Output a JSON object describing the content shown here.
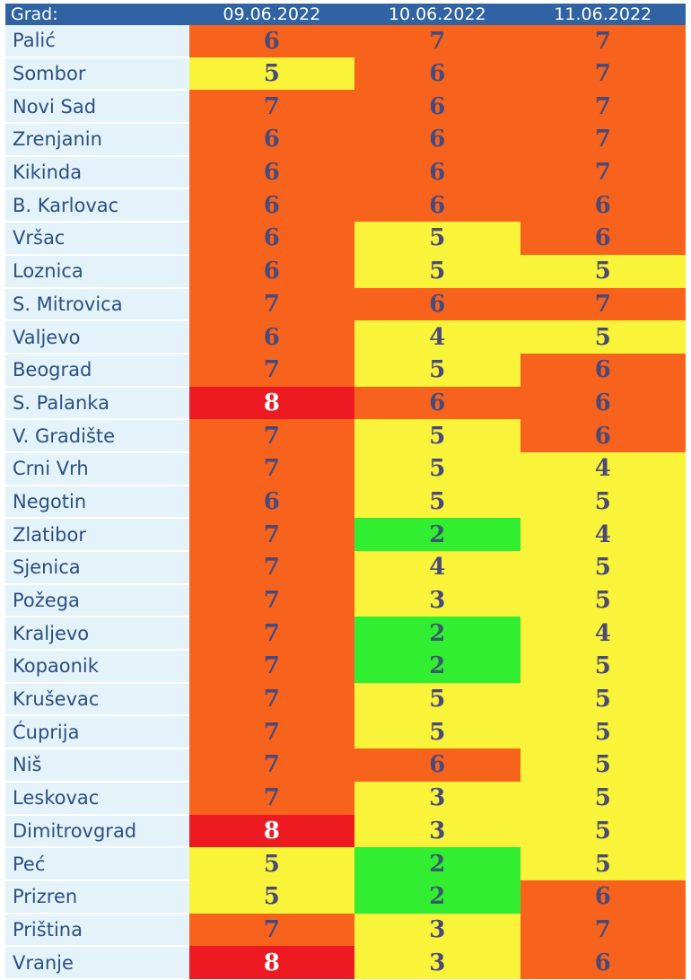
{
  "colors": {
    "header_bg": "#2f63a3",
    "city_bg": "#e4f2f9",
    "level_colors": {
      "2": "#31ee31",
      "3": "#f9f33a",
      "4": "#f9f33a",
      "5": "#f9f33a",
      "6": "#f7631d",
      "7": "#f7631d",
      "8": "#ee1a22"
    }
  },
  "table": {
    "headers": [
      "Grad:",
      "09.06.2022",
      "10.06.2022",
      "11.06.2022"
    ],
    "rows": [
      {
        "city": "Palić",
        "values": [
          "6",
          "7",
          "7"
        ]
      },
      {
        "city": "Sombor",
        "values": [
          "5",
          "6",
          "7"
        ]
      },
      {
        "city": "Novi Sad",
        "values": [
          "7",
          "6",
          "7"
        ]
      },
      {
        "city": "Zrenjanin",
        "values": [
          "6",
          "6",
          "7"
        ]
      },
      {
        "city": "Kikinda",
        "values": [
          "6",
          "6",
          "7"
        ]
      },
      {
        "city": "B. Karlovac",
        "values": [
          "6",
          "6",
          "6"
        ]
      },
      {
        "city": "Vršac",
        "values": [
          "6",
          "5",
          "6"
        ]
      },
      {
        "city": "Loznica",
        "values": [
          "6",
          "5",
          "5"
        ]
      },
      {
        "city": "S. Mitrovica",
        "values": [
          "7",
          "6",
          "7"
        ]
      },
      {
        "city": "Valjevo",
        "values": [
          "6",
          "4",
          "5"
        ]
      },
      {
        "city": "Beograd",
        "values": [
          "7",
          "5",
          "6"
        ]
      },
      {
        "city": "S. Palanka",
        "values": [
          "8",
          "6",
          "6"
        ]
      },
      {
        "city": "V. Gradište",
        "values": [
          "7",
          "5",
          "6"
        ]
      },
      {
        "city": "Crni Vrh",
        "values": [
          "7",
          "5",
          "4"
        ]
      },
      {
        "city": "Negotin",
        "values": [
          "6",
          "5",
          "5"
        ]
      },
      {
        "city": "Zlatibor",
        "values": [
          "7",
          "2",
          "4"
        ]
      },
      {
        "city": "Sjenica",
        "values": [
          "7",
          "4",
          "5"
        ]
      },
      {
        "city": "Požega",
        "values": [
          "7",
          "3",
          "5"
        ]
      },
      {
        "city": "Kraljevo",
        "values": [
          "7",
          "2",
          "4"
        ]
      },
      {
        "city": "Kopaonik",
        "values": [
          "7",
          "2",
          "5"
        ]
      },
      {
        "city": "Kruševac",
        "values": [
          "7",
          "5",
          "5"
        ]
      },
      {
        "city": "Ćuprija",
        "values": [
          "7",
          "5",
          "5"
        ]
      },
      {
        "city": "Niš",
        "values": [
          "7",
          "6",
          "5"
        ]
      },
      {
        "city": "Leskovac",
        "values": [
          "7",
          "3",
          "5"
        ]
      },
      {
        "city": "Dimitrovgrad",
        "values": [
          "8",
          "3",
          "5"
        ]
      },
      {
        "city": "Peć",
        "values": [
          "5",
          "2",
          "5"
        ]
      },
      {
        "city": "Prizren",
        "values": [
          "5",
          "2",
          "6"
        ]
      },
      {
        "city": "Priština",
        "values": [
          "7",
          "3",
          "7"
        ]
      },
      {
        "city": "Vranje",
        "values": [
          "8",
          "3",
          "6"
        ]
      }
    ]
  }
}
